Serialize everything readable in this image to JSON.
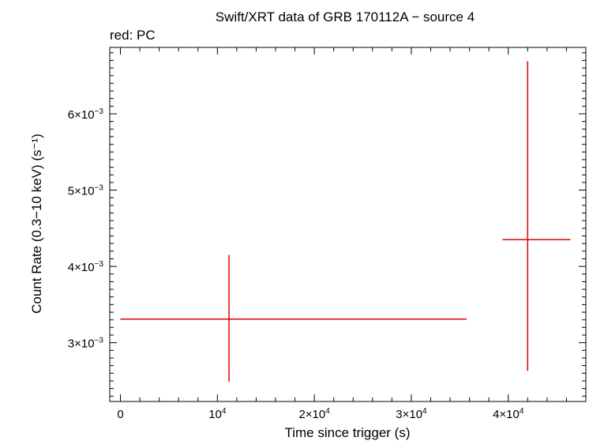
{
  "chart_data": {
    "type": "scatter",
    "title": "Swift/XRT data of GRB 170112A − source 4",
    "subtitle": "red: PC",
    "xlabel": "Time since trigger (s)",
    "ylabel": "Count Rate (0.3−10 keV) (s⁻¹)",
    "xlim": [
      -1100,
      48000
    ],
    "ylim": [
      0.00223,
      0.00687
    ],
    "x_ticks": [
      {
        "value": 0,
        "mant": "0",
        "exp": ""
      },
      {
        "value": 10000,
        "mant": "10",
        "exp": "4"
      },
      {
        "value": 20000,
        "mant": "2×10",
        "exp": "4"
      },
      {
        "value": 30000,
        "mant": "3×10",
        "exp": "4"
      },
      {
        "value": 40000,
        "mant": "4×10",
        "exp": "4"
      }
    ],
    "y_ticks": [
      {
        "value": 0.003,
        "mant": "3×10",
        "exp": "−3"
      },
      {
        "value": 0.004,
        "mant": "4×10",
        "exp": "−3"
      },
      {
        "value": 0.005,
        "mant": "5×10",
        "exp": "−3"
      },
      {
        "value": 0.006,
        "mant": "6×10",
        "exp": "−3"
      }
    ],
    "series": [
      {
        "name": "PC",
        "color": "#dd0000",
        "points": [
          {
            "x": 11200,
            "xlo": 0,
            "xhi": 35700,
            "y": 0.00331,
            "ylo": 0.00249,
            "yhi": 0.00415
          },
          {
            "x": 42000,
            "xlo": 39400,
            "xhi": 46400,
            "y": 0.00435,
            "ylo": 0.00263,
            "yhi": 0.00669
          }
        ]
      }
    ],
    "grid": false,
    "legend": "none"
  }
}
